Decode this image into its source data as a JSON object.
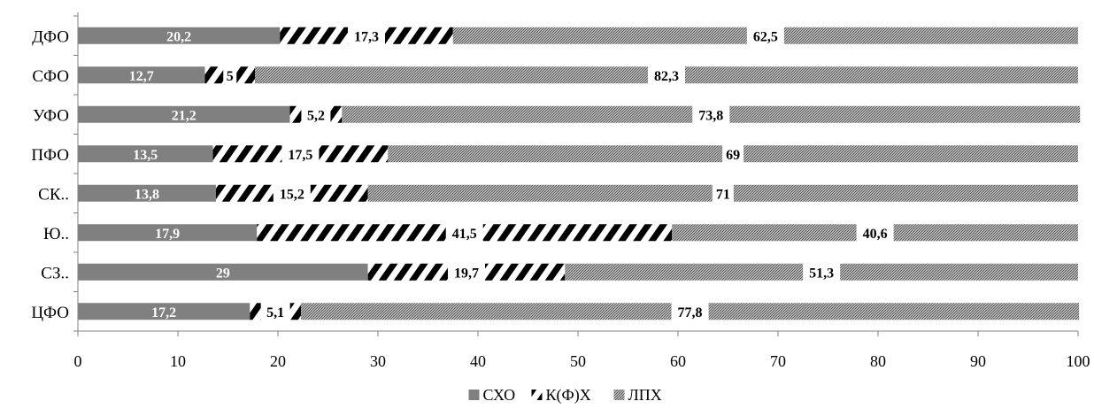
{
  "chart_data": {
    "type": "bar",
    "orientation": "horizontal",
    "stacked": true,
    "categories": [
      "ЦФО",
      "СЗ..",
      "Ю..",
      "СК..",
      "ПФО",
      "УФО",
      "СФО",
      "ДФО"
    ],
    "series": [
      {
        "name": "СХО",
        "values": [
          17.2,
          29,
          17.9,
          13.8,
          13.5,
          21.2,
          12.7,
          20.2
        ],
        "color": "#808080",
        "pattern": "solid",
        "label_color": "#ffffff"
      },
      {
        "name": "К(Ф)Х",
        "values": [
          5.1,
          19.7,
          41.5,
          15.2,
          17.5,
          5.2,
          5,
          17.3
        ],
        "color": "#000000",
        "pattern": "diagonal-stripes",
        "label_color": "#000000"
      },
      {
        "name": "ЛПХ",
        "values": [
          77.8,
          51.3,
          40.6,
          71,
          69,
          73.8,
          82.3,
          62.5
        ],
        "color": "#8c8c8c",
        "pattern": "fine-dots",
        "label_color": "#000000"
      }
    ],
    "data_labels": [
      [
        "17,2",
        "29",
        "17,9",
        "13,8",
        "13,5",
        "21,2",
        "12,7",
        "20,2"
      ],
      [
        "5,1",
        "19,7",
        "41,5",
        "15,2",
        "17,5",
        "5,2",
        "5",
        "17,3"
      ],
      [
        "77,8",
        "51,3",
        "40,6",
        "71",
        "69",
        "73,8",
        "82,3",
        "62,5"
      ]
    ],
    "x_ticks": [
      "0",
      "10",
      "20",
      "30",
      "40",
      "50",
      "60",
      "70",
      "80",
      "90",
      "100"
    ],
    "xlim": [
      0,
      100
    ],
    "grid": false,
    "legend_position": "bottom",
    "title": "",
    "xlabel": "",
    "ylabel": ""
  }
}
